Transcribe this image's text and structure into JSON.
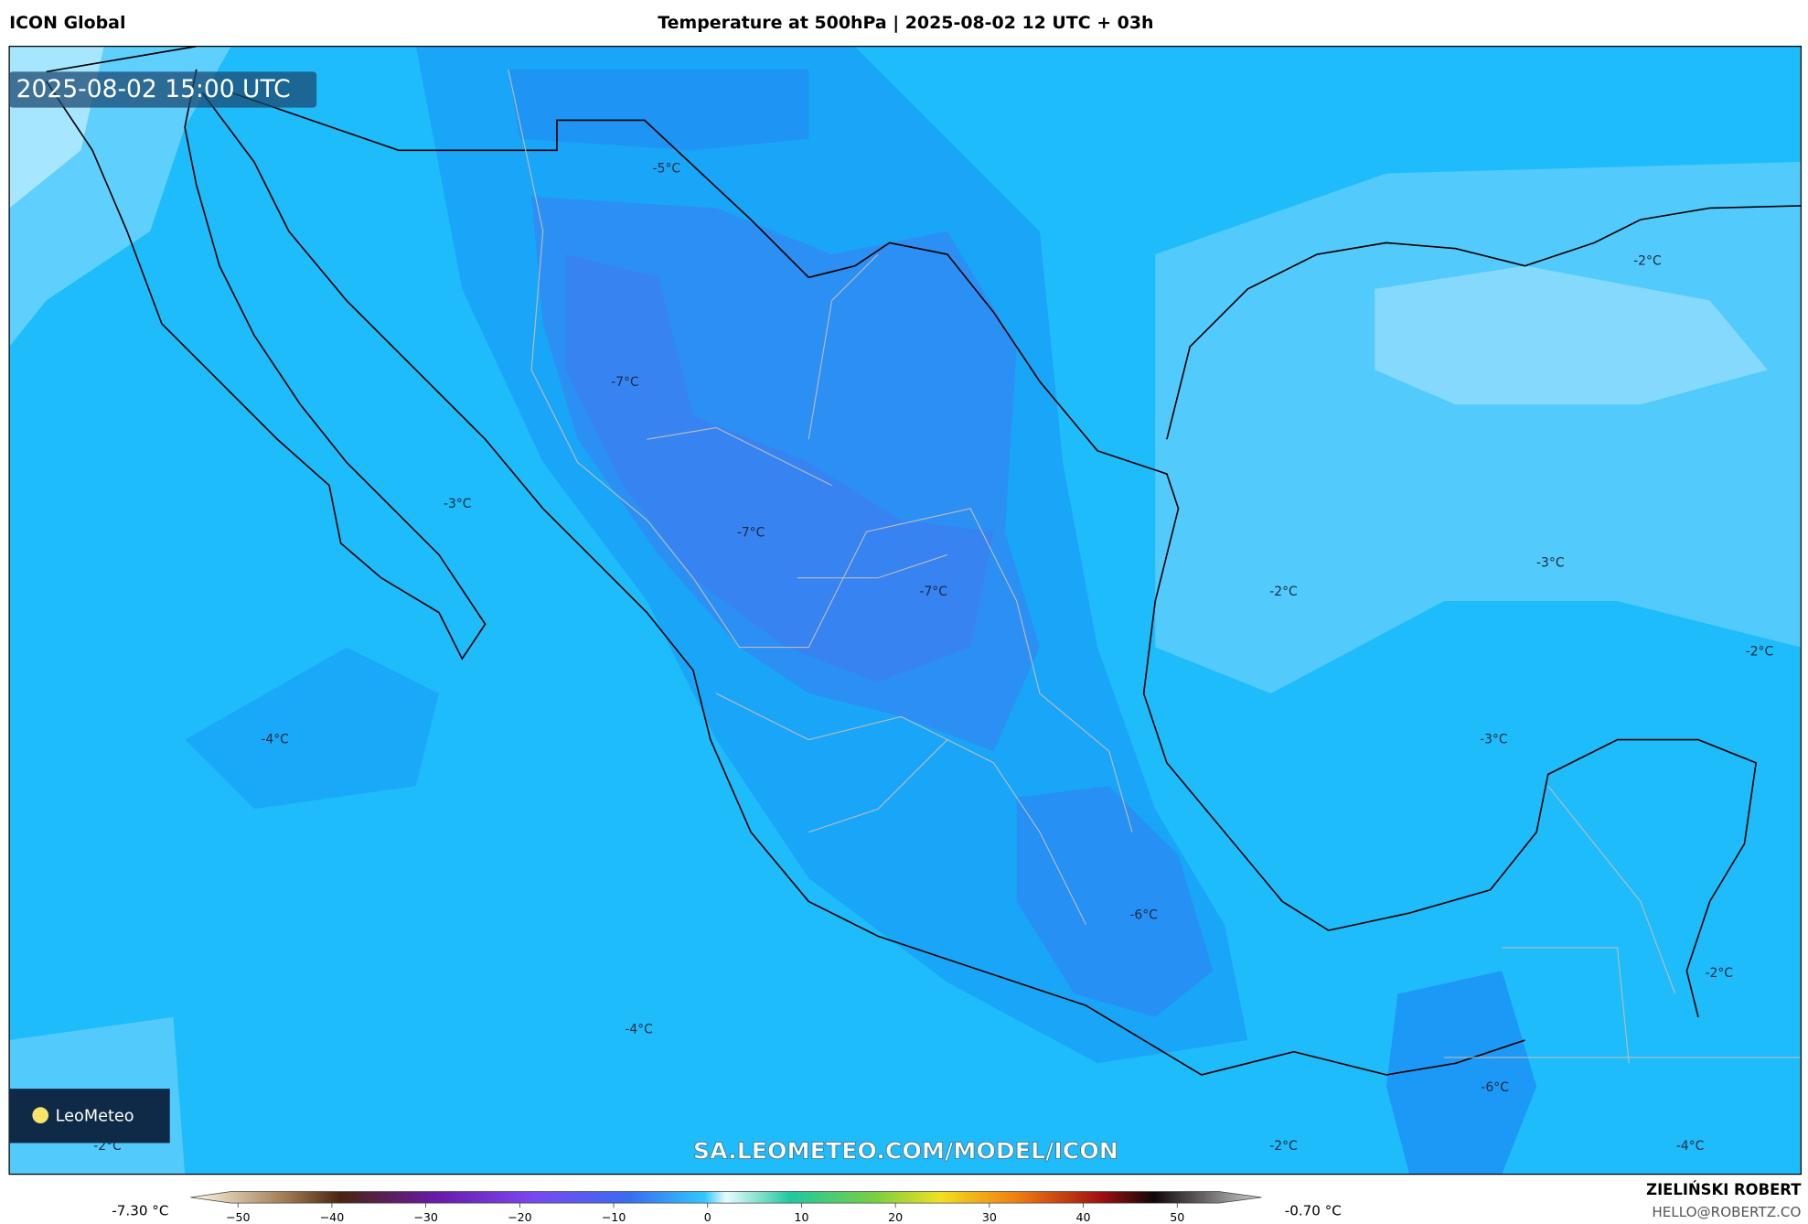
{
  "header": {
    "model": "ICON Global",
    "title": "Temperature at 500hPa | 2025-08-02 12 UTC + 03h"
  },
  "map": {
    "valid_time": "2025-08-02 15:00 UTC",
    "contour_labels": [
      "-5°C",
      "-7°C",
      "-3°C",
      "-7°C",
      "-7°C",
      "-2°C",
      "-3°C",
      "-2°C",
      "-2°C",
      "-4°C",
      "-3°C",
      "-6°C",
      "-2°C",
      "-4°C",
      "-6°C",
      "-2°C",
      "-2°C",
      "-4°C"
    ],
    "watermark": "SA.LEOMETEO.COM/MODEL/ICON",
    "logo": "LeoMeteo"
  },
  "colorbar": {
    "min_label": "-7.30 °C",
    "max_label": "-0.70 °C",
    "ticks": [
      "−50",
      "−40",
      "−30",
      "−20",
      "−10",
      "0",
      "10",
      "20",
      "30",
      "40",
      "50"
    ]
  },
  "footer": {
    "author": "ZIELIŃSKI ROBERT",
    "contact": "HELLO@ROBERTZ.CO"
  }
}
